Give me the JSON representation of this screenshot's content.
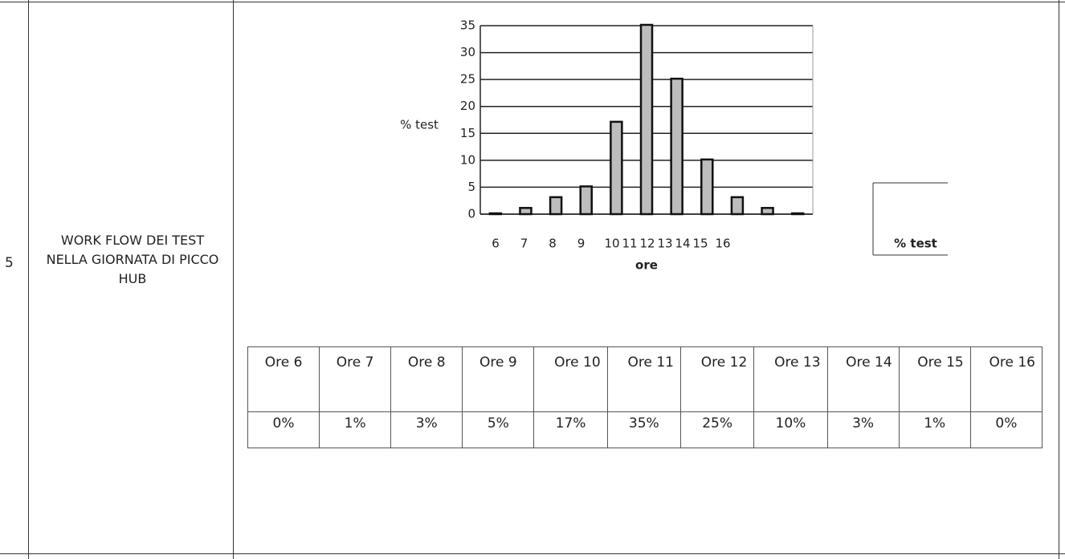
{
  "row": {
    "number": "5",
    "label": "WORK FLOW DEI TEST NELLA GIORNATA DI PICCO HUB"
  },
  "chart_data": {
    "type": "bar",
    "x_label": "ore",
    "y_label": "% test",
    "categories": [
      "6",
      "7",
      "8",
      "9",
      "10",
      "11",
      "12",
      "13",
      "14",
      "15",
      "16"
    ],
    "series": [
      {
        "name": "% test",
        "color": "#bdbdbd",
        "values": [
          0,
          1,
          3,
          5,
          17,
          35,
          25,
          10,
          3,
          1,
          0
        ]
      }
    ],
    "ylim": [
      0,
      35
    ],
    "yticks": [
      0,
      5,
      10,
      15,
      20,
      25,
      30,
      35
    ],
    "grid": true
  },
  "table": {
    "rows": [
      [
        "Ore 6",
        "Ore 7",
        "Ore 8",
        "Ore 9",
        "Ore 10",
        "Ore 11",
        "Ore 12",
        "Ore 13",
        "Ore 14",
        "Ore 15",
        "Ore 16"
      ],
      [
        "0%",
        "1%",
        "3%",
        "5%",
        "17%",
        "35%",
        "25%",
        "10%",
        "3%",
        "1%",
        "0%"
      ]
    ]
  }
}
